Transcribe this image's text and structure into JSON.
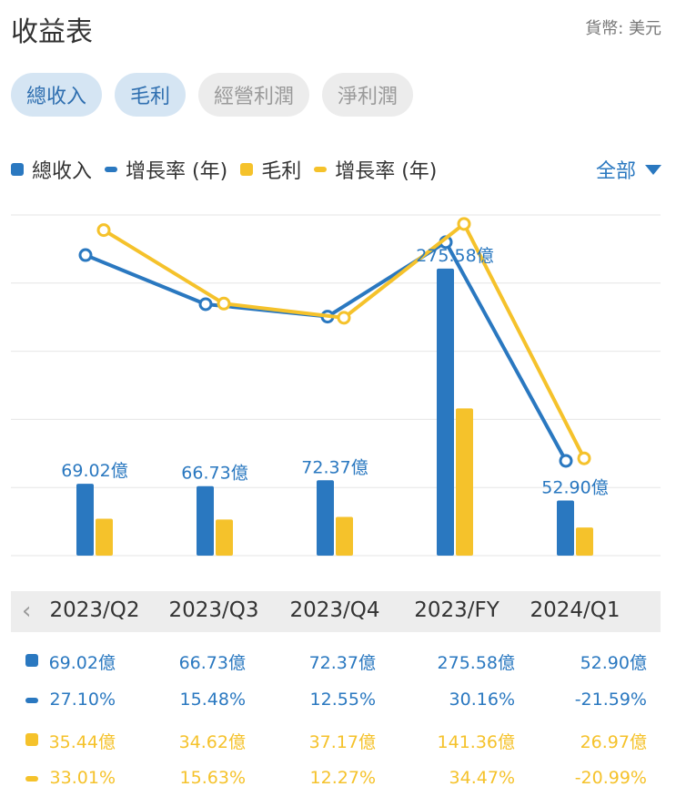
{
  "header": {
    "title": "收益表",
    "currency": "貨幣: 美元"
  },
  "tabs": [
    {
      "label": "總收入",
      "active": true
    },
    {
      "label": "毛利",
      "active": true
    },
    {
      "label": "經營利潤",
      "active": false
    },
    {
      "label": "淨利潤",
      "active": false
    }
  ],
  "legend": [
    {
      "label": "總收入",
      "shape": "square",
      "color": "#2a78c0"
    },
    {
      "label": "增長率 (年)",
      "shape": "dash",
      "color": "#2a78c0"
    },
    {
      "label": "毛利",
      "shape": "square",
      "color": "#f5c22b"
    },
    {
      "label": "增長率 (年)",
      "shape": "dash",
      "color": "#f5c22b"
    }
  ],
  "filter": {
    "label": "全部"
  },
  "colors": {
    "blue": "#2a78c0",
    "yellow": "#f5c22b"
  },
  "chart_data": {
    "type": "bar",
    "categories": [
      "2023/Q2",
      "2023/Q3",
      "2023/Q4",
      "2023/FY",
      "2024/Q1"
    ],
    "series": [
      {
        "name": "總收入",
        "type": "bar",
        "values": [
          69.02,
          66.73,
          72.37,
          275.58,
          52.9
        ],
        "unit": "億",
        "color": "#2a78c0"
      },
      {
        "name": "毛利",
        "type": "bar",
        "values": [
          35.44,
          34.62,
          37.17,
          141.36,
          26.97
        ],
        "unit": "億",
        "color": "#f5c22b"
      },
      {
        "name": "增長率 (年)",
        "type": "line",
        "values": [
          27.1,
          15.48,
          12.55,
          30.16,
          -21.59
        ],
        "unit": "%",
        "color": "#2a78c0"
      },
      {
        "name": "增長率 (年)",
        "type": "line",
        "values": [
          33.01,
          15.63,
          12.27,
          34.47,
          -20.99
        ],
        "unit": "%",
        "color": "#f5c22b"
      }
    ],
    "bar_labels": [
      "69.02億",
      "66.73億",
      "72.37億",
      "275.58億",
      "52.90億"
    ],
    "grid": true
  },
  "table": {
    "rows": [
      {
        "icon": "square",
        "color": "#2a78c0",
        "cells": [
          "69.02億",
          "66.73億",
          "72.37億",
          "275.58億",
          "52.90億"
        ]
      },
      {
        "icon": "dash",
        "color": "#2a78c0",
        "cells": [
          "27.10%",
          "15.48%",
          "12.55%",
          "30.16%",
          "-21.59%"
        ]
      },
      {
        "icon": "square",
        "color": "#f5c22b",
        "cells": [
          "35.44億",
          "34.62億",
          "37.17億",
          "141.36億",
          "26.97億"
        ]
      },
      {
        "icon": "dash",
        "color": "#f5c22b",
        "cells": [
          "33.01%",
          "15.63%",
          "12.27%",
          "34.47%",
          "-20.99%"
        ]
      }
    ]
  }
}
